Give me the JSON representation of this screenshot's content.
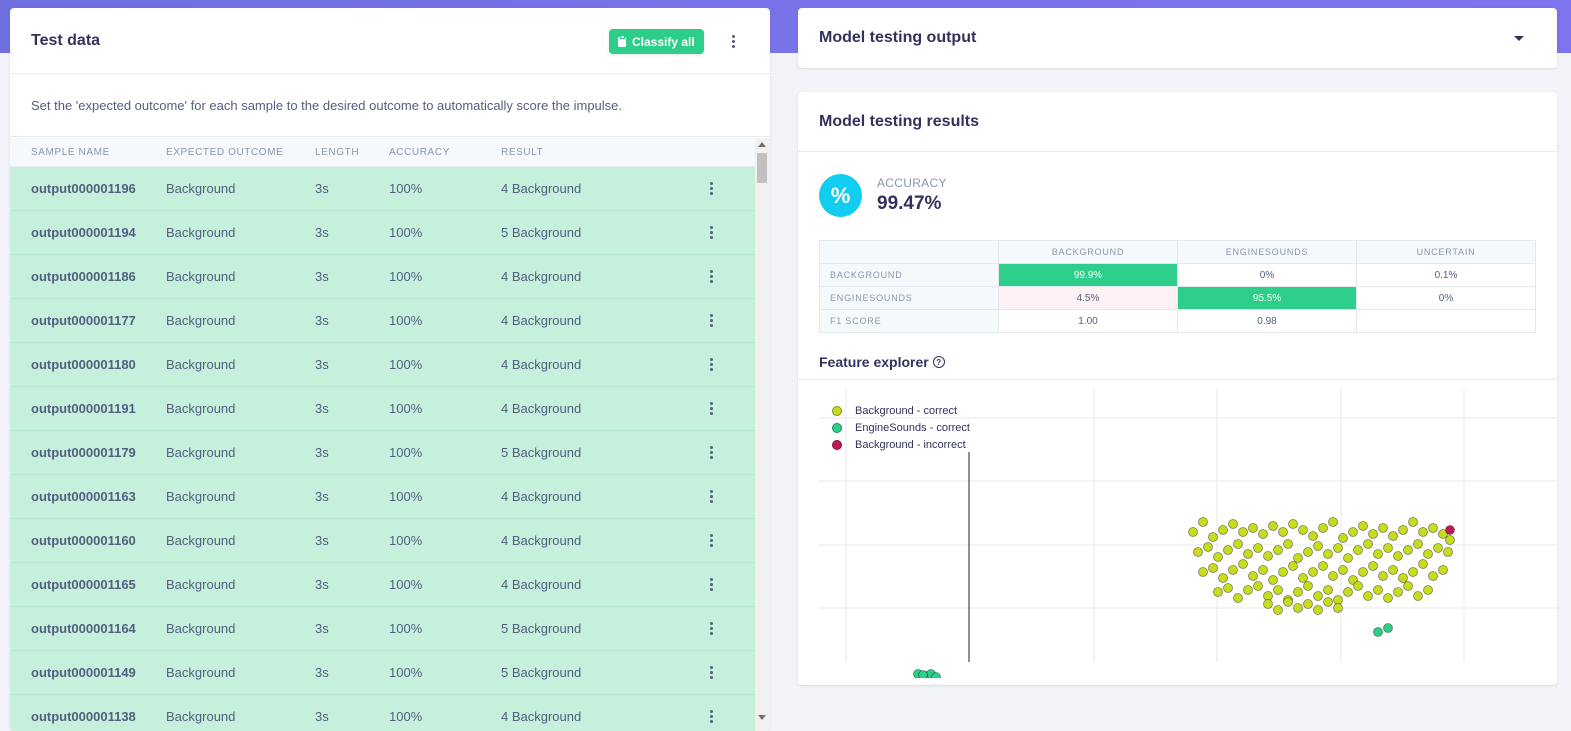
{
  "left": {
    "title": "Test data",
    "classify_label": "Classify all",
    "description": "Set the 'expected outcome' for each sample to the desired outcome to automatically score the impulse.",
    "columns": [
      "SAMPLE NAME",
      "EXPECTED OUTCOME",
      "LENGTH",
      "ACCURACY",
      "RESULT"
    ],
    "rows": [
      {
        "name": "output000001196",
        "expected": "Background",
        "length": "3s",
        "accuracy": "100%",
        "result": "4 Background"
      },
      {
        "name": "output000001194",
        "expected": "Background",
        "length": "3s",
        "accuracy": "100%",
        "result": "5 Background"
      },
      {
        "name": "output000001186",
        "expected": "Background",
        "length": "3s",
        "accuracy": "100%",
        "result": "4 Background"
      },
      {
        "name": "output000001177",
        "expected": "Background",
        "length": "3s",
        "accuracy": "100%",
        "result": "4 Background"
      },
      {
        "name": "output000001180",
        "expected": "Background",
        "length": "3s",
        "accuracy": "100%",
        "result": "4 Background"
      },
      {
        "name": "output000001191",
        "expected": "Background",
        "length": "3s",
        "accuracy": "100%",
        "result": "4 Background"
      },
      {
        "name": "output000001179",
        "expected": "Background",
        "length": "3s",
        "accuracy": "100%",
        "result": "5 Background"
      },
      {
        "name": "output000001163",
        "expected": "Background",
        "length": "3s",
        "accuracy": "100%",
        "result": "4 Background"
      },
      {
        "name": "output000001160",
        "expected": "Background",
        "length": "3s",
        "accuracy": "100%",
        "result": "4 Background"
      },
      {
        "name": "output000001165",
        "expected": "Background",
        "length": "3s",
        "accuracy": "100%",
        "result": "4 Background"
      },
      {
        "name": "output000001164",
        "expected": "Background",
        "length": "3s",
        "accuracy": "100%",
        "result": "5 Background"
      },
      {
        "name": "output000001149",
        "expected": "Background",
        "length": "3s",
        "accuracy": "100%",
        "result": "5 Background"
      },
      {
        "name": "output000001138",
        "expected": "Background",
        "length": "3s",
        "accuracy": "100%",
        "result": "4 Background"
      }
    ]
  },
  "output": {
    "title": "Model testing output"
  },
  "results": {
    "title": "Model testing results",
    "accuracy_icon": "%",
    "accuracy_label": "ACCURACY",
    "accuracy_value": "99.47%",
    "matrix": {
      "columns": [
        "BACKGROUND",
        "ENGINESOUNDS",
        "UNCERTAIN"
      ],
      "rows": [
        {
          "label": "BACKGROUND",
          "cells": [
            "99.9%",
            "0%",
            "0.1%"
          ]
        },
        {
          "label": "ENGINESOUNDS",
          "cells": [
            "4.5%",
            "95.5%",
            "0%"
          ]
        },
        {
          "label": "F1 SCORE",
          "cells": [
            "1.00",
            "0.98",
            ""
          ]
        }
      ]
    },
    "feature_explorer_title": "Feature explorer",
    "help_glyph": "?"
  },
  "colors": {
    "correct_background": "#c8dc1f",
    "correct_engine": "#2dce89",
    "incorrect_background": "#c2185b",
    "header_band": "#7173e6",
    "success": "#2dce89",
    "info": "#11cdef"
  },
  "chart_data": {
    "type": "scatter",
    "title": "",
    "xlabel": "",
    "ylabel": "",
    "grid": true,
    "legend_position": "top-left",
    "series": [
      {
        "name": "Background - correct",
        "color": "#c8dc1f",
        "points": [
          [
            395,
            440
          ],
          [
            405,
            430
          ],
          [
            415,
            445
          ],
          [
            425,
            438
          ],
          [
            435,
            432
          ],
          [
            445,
            440
          ],
          [
            455,
            436
          ],
          [
            465,
            442
          ],
          [
            475,
            434
          ],
          [
            485,
            440
          ],
          [
            495,
            432
          ],
          [
            505,
            438
          ],
          [
            515,
            444
          ],
          [
            525,
            436
          ],
          [
            535,
            430
          ],
          [
            545,
            446
          ],
          [
            555,
            440
          ],
          [
            565,
            434
          ],
          [
            575,
            442
          ],
          [
            585,
            436
          ],
          [
            595,
            444
          ],
          [
            605,
            438
          ],
          [
            615,
            430
          ],
          [
            625,
            440
          ],
          [
            635,
            436
          ],
          [
            645,
            442
          ],
          [
            652,
            448
          ],
          [
            400,
            460
          ],
          [
            410,
            455
          ],
          [
            420,
            465
          ],
          [
            430,
            458
          ],
          [
            440,
            452
          ],
          [
            450,
            462
          ],
          [
            460,
            456
          ],
          [
            470,
            464
          ],
          [
            480,
            458
          ],
          [
            490,
            452
          ],
          [
            500,
            466
          ],
          [
            510,
            460
          ],
          [
            520,
            454
          ],
          [
            530,
            462
          ],
          [
            540,
            456
          ],
          [
            550,
            466
          ],
          [
            560,
            458
          ],
          [
            570,
            452
          ],
          [
            580,
            462
          ],
          [
            590,
            456
          ],
          [
            600,
            464
          ],
          [
            610,
            458
          ],
          [
            620,
            452
          ],
          [
            630,
            462
          ],
          [
            640,
            456
          ],
          [
            650,
            460
          ],
          [
            405,
            480
          ],
          [
            415,
            476
          ],
          [
            425,
            486
          ],
          [
            435,
            478
          ],
          [
            445,
            472
          ],
          [
            455,
            484
          ],
          [
            465,
            478
          ],
          [
            475,
            488
          ],
          [
            485,
            480
          ],
          [
            495,
            474
          ],
          [
            505,
            486
          ],
          [
            515,
            480
          ],
          [
            525,
            474
          ],
          [
            535,
            484
          ],
          [
            545,
            478
          ],
          [
            555,
            488
          ],
          [
            565,
            480
          ],
          [
            575,
            474
          ],
          [
            585,
            484
          ],
          [
            595,
            478
          ],
          [
            605,
            486
          ],
          [
            615,
            480
          ],
          [
            625,
            472
          ],
          [
            635,
            484
          ],
          [
            645,
            478
          ],
          [
            420,
            500
          ],
          [
            430,
            496
          ],
          [
            440,
            506
          ],
          [
            450,
            498
          ],
          [
            460,
            494
          ],
          [
            470,
            504
          ],
          [
            480,
            498
          ],
          [
            490,
            508
          ],
          [
            500,
            500
          ],
          [
            510,
            494
          ],
          [
            520,
            504
          ],
          [
            530,
            498
          ],
          [
            540,
            508
          ],
          [
            550,
            500
          ],
          [
            560,
            494
          ],
          [
            570,
            504
          ],
          [
            580,
            498
          ],
          [
            590,
            506
          ],
          [
            600,
            500
          ],
          [
            610,
            494
          ],
          [
            620,
            504
          ],
          [
            630,
            498
          ],
          [
            470,
            512
          ],
          [
            480,
            518
          ],
          [
            490,
            510
          ],
          [
            500,
            516
          ],
          [
            510,
            512
          ],
          [
            520,
            518
          ],
          [
            530,
            510
          ],
          [
            540,
            516
          ]
        ]
      },
      {
        "name": "EngineSounds - correct",
        "color": "#2dce89",
        "points": [
          [
            580,
            540
          ],
          [
            590,
            536
          ],
          [
            120,
            582
          ],
          [
            128,
            584
          ],
          [
            133,
            582
          ],
          [
            138,
            585
          ],
          [
            125,
            583
          ],
          [
            308,
            620
          ],
          [
            316,
            622
          ]
        ]
      },
      {
        "name": "Background - incorrect",
        "color": "#c2185b",
        "points": [
          [
            652,
            438
          ]
        ]
      }
    ]
  }
}
